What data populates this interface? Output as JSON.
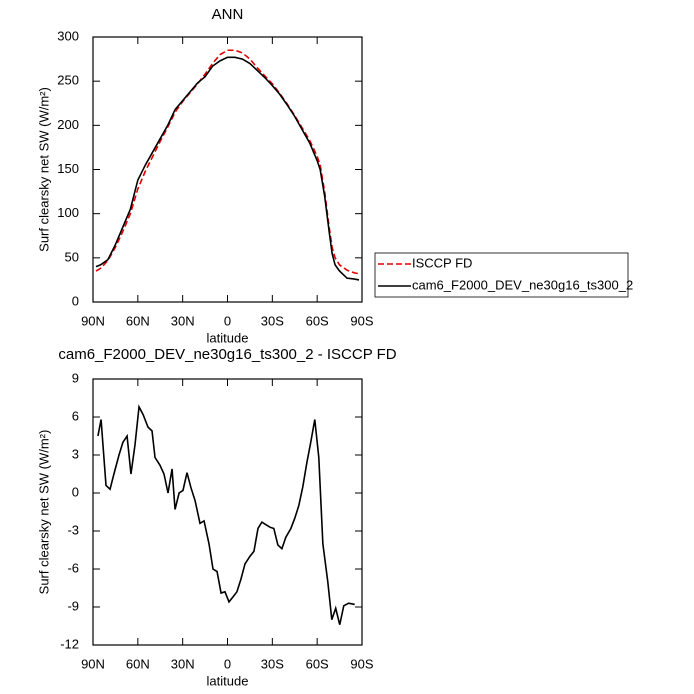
{
  "chart_data": [
    {
      "type": "line",
      "title": "ANN",
      "xlabel": "latitude",
      "ylabel": "Surf clearsky net SW (W/m²)",
      "xlim": [
        90,
        -90
      ],
      "ylim": [
        0,
        300
      ],
      "xticks": [
        {
          "value": 90,
          "label": "90N"
        },
        {
          "value": 60,
          "label": "60N"
        },
        {
          "value": 30,
          "label": "30N"
        },
        0,
        {
          "value": -30,
          "label": "30S"
        },
        {
          "value": -60,
          "label": "60S"
        },
        {
          "value": -90,
          "label": "90S"
        }
      ],
      "yticks": [
        0,
        50,
        100,
        150,
        200,
        250,
        300
      ],
      "legend": "outside-right",
      "x": [
        88,
        85,
        80,
        75,
        70,
        65,
        60,
        55,
        50,
        45,
        40,
        35,
        30,
        25,
        20,
        15,
        10,
        5,
        0,
        -5,
        -10,
        -15,
        -20,
        -25,
        -30,
        -35,
        -40,
        -45,
        -50,
        -55,
        -60,
        -62,
        -65,
        -68,
        -70,
        -72,
        -75,
        -80,
        -85,
        -88
      ],
      "series": [
        {
          "name": "ISCCP FD",
          "color": "#e00000",
          "linestyle": "dashed",
          "values": [
            35,
            38,
            47,
            62,
            80,
            100,
            128,
            148,
            165,
            182,
            198,
            215,
            227,
            237,
            247,
            258,
            270,
            280,
            285,
            285,
            282,
            275,
            265,
            256,
            247,
            236,
            224,
            211,
            197,
            183,
            165,
            155,
            125,
            85,
            62,
            50,
            42,
            36,
            33,
            32
          ]
        },
        {
          "name": "cam6_F2000_DEV_ne30g16_ts300_2",
          "color": "#000000",
          "linestyle": "solid",
          "values": [
            40,
            42,
            48,
            65,
            85,
            105,
            138,
            155,
            170,
            185,
            200,
            218,
            228,
            238,
            248,
            255,
            267,
            273,
            277,
            277,
            275,
            270,
            262,
            254,
            245,
            235,
            223,
            210,
            195,
            180,
            160,
            150,
            120,
            80,
            55,
            42,
            35,
            27,
            26,
            25
          ]
        }
      ]
    },
    {
      "type": "line",
      "title": "cam6_F2000_DEV_ne30g16_ts300_2 - ISCCP FD",
      "xlabel": "latitude",
      "ylabel": "Surf clearsky net SW (W/m²)",
      "xlim": [
        90,
        -90
      ],
      "ylim": [
        -12,
        9
      ],
      "xticks": [
        {
          "value": 90,
          "label": "90N"
        },
        {
          "value": 60,
          "label": "60N"
        },
        {
          "value": 30,
          "label": "30N"
        },
        0,
        {
          "value": -30,
          "label": "30S"
        },
        {
          "value": -60,
          "label": "60S"
        },
        {
          "value": -90,
          "label": "90S"
        }
      ],
      "yticks": [
        -12,
        -9,
        -6,
        -3,
        0,
        3,
        6,
        9
      ],
      "x": [
        86.7,
        84.6,
        81.3,
        78.6,
        76,
        72.6,
        70,
        67.2,
        64.6,
        61.9,
        59.2,
        56.5,
        53.2,
        50.5,
        48.5,
        45.2,
        42.5,
        39.8,
        37.1,
        35.1,
        32.4,
        29.8,
        27.1,
        24.4,
        21.7,
        18.4,
        15.7,
        12.4,
        9.7,
        7,
        4.3,
        1.7,
        -1,
        -3.7,
        -6.3,
        -9,
        -11.7,
        -15,
        -17.7,
        -20.4,
        -23,
        -25.7,
        -28.4,
        -31,
        -33.7,
        -36.4,
        -39,
        -42.4,
        -45,
        -47.7,
        -50.4,
        -53.1,
        -55.7,
        -58.4,
        -61.1,
        -63.8,
        -67.1,
        -69.8,
        -72.4,
        -75.1,
        -77.8,
        -81.1,
        -85.1
      ],
      "series": [
        {
          "color": "#000000",
          "linestyle": "solid",
          "values": [
            4.5,
            5.8,
            0.6,
            0.3,
            1.5,
            3.0,
            4.0,
            4.5,
            1.5,
            3.8,
            6.8,
            6.2,
            5.2,
            4.9,
            2.8,
            2.2,
            1.5,
            0.0,
            1.9,
            -1.3,
            0.0,
            0.2,
            1.6,
            0.4,
            -0.6,
            -2.4,
            -2.2,
            -4,
            -6.0,
            -6.2,
            -7.9,
            -7.8,
            -8.6,
            -8.2,
            -7.8,
            -6.8,
            -5.6,
            -5.0,
            -4.6,
            -2.8,
            -2.3,
            -2.5,
            -2.7,
            -2.8,
            -4.1,
            -4.4,
            -3.5,
            -2.8,
            -2.0,
            -1.0,
            0.5,
            2.4,
            4.0,
            5.8,
            2.8,
            -4.0,
            -7,
            -10.0,
            -9.1,
            -10.4,
            -8.9,
            -8.7,
            -8.8
          ]
        }
      ]
    }
  ]
}
